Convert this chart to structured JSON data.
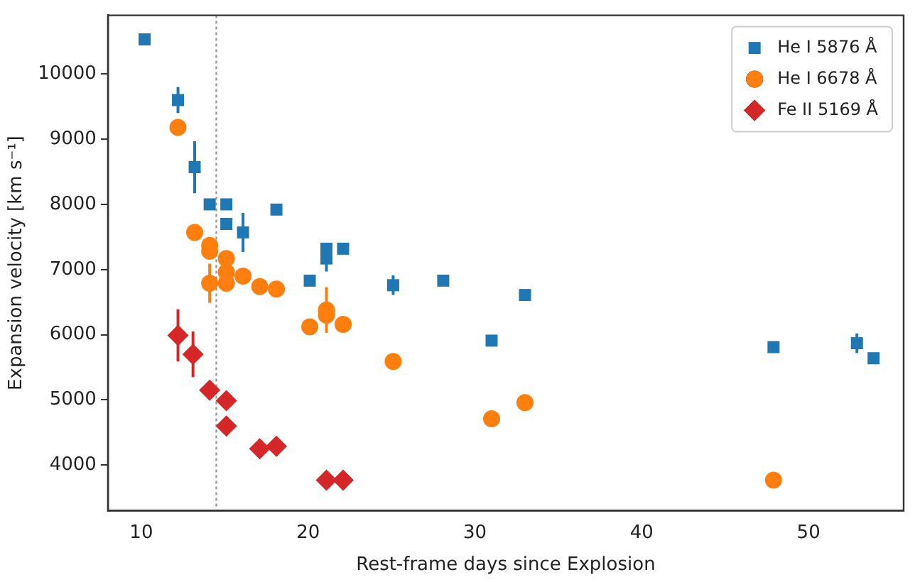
{
  "chart_data": {
    "type": "scatter",
    "xlabel": "Rest-frame days since Explosion",
    "ylabel": "Expansion velocity [km s⁻¹]",
    "xlim": [
      8,
      55.7
    ],
    "ylim": [
      3300,
      10900
    ],
    "xticks": [
      10,
      20,
      30,
      40,
      50
    ],
    "yticks": [
      4000,
      5000,
      6000,
      7000,
      8000,
      9000,
      10000
    ],
    "grid": false,
    "legend": "top right",
    "ref_lines": [
      {
        "axis": "x",
        "value": 14.5,
        "color": "#999999",
        "line_style": "dotted"
      }
    ],
    "series": [
      {
        "name": "He I 5876 Å",
        "color": "#1f77b4",
        "marker": "square",
        "x": [
          10.2,
          12.2,
          13.2,
          14.1,
          15.1,
          15.1,
          16.1,
          18.1,
          20.1,
          21.1,
          21.1,
          22.1,
          25.1,
          28.1,
          31,
          33,
          47.9,
          52.9,
          53.9
        ],
        "values": [
          10530,
          9600,
          8570,
          8000,
          8000,
          7700,
          7570,
          7920,
          6830,
          7320,
          7170,
          7320,
          6760,
          6830,
          5910,
          6610,
          5810,
          5870,
          5640
        ],
        "errors": [
          null,
          200,
          400,
          null,
          null,
          null,
          300,
          null,
          null,
          null,
          200,
          null,
          150,
          null,
          null,
          null,
          null,
          150,
          null
        ]
      },
      {
        "name": "He I 6678 Å",
        "color": "#ff7f0e",
        "marker": "circle",
        "x": [
          12.2,
          13.2,
          14.1,
          14.1,
          14.1,
          15.1,
          15.1,
          15.1,
          16.1,
          17.1,
          18.1,
          20.1,
          21.1,
          21.1,
          22.1,
          25.1,
          31,
          33,
          47.9
        ],
        "values": [
          9180,
          7570,
          7370,
          7280,
          6790,
          7170,
          6960,
          6790,
          6900,
          6740,
          6700,
          6120,
          6380,
          6300,
          6160,
          5590,
          4710,
          4960,
          3770
        ],
        "errors": [
          null,
          null,
          null,
          null,
          300,
          null,
          null,
          null,
          null,
          null,
          null,
          null,
          350,
          null,
          null,
          null,
          null,
          null,
          null
        ]
      },
      {
        "name": "Fe II 5169 Å",
        "color": "#d62728",
        "marker": "diamond",
        "x": [
          12.2,
          13.1,
          14.1,
          15.1,
          15.1,
          17.1,
          18.1,
          21.1,
          22.1
        ],
        "values": [
          5990,
          5700,
          5150,
          4990,
          4600,
          4250,
          4290,
          3770,
          3770
        ],
        "errors": [
          400,
          350,
          null,
          null,
          null,
          null,
          null,
          null,
          null
        ]
      }
    ]
  }
}
